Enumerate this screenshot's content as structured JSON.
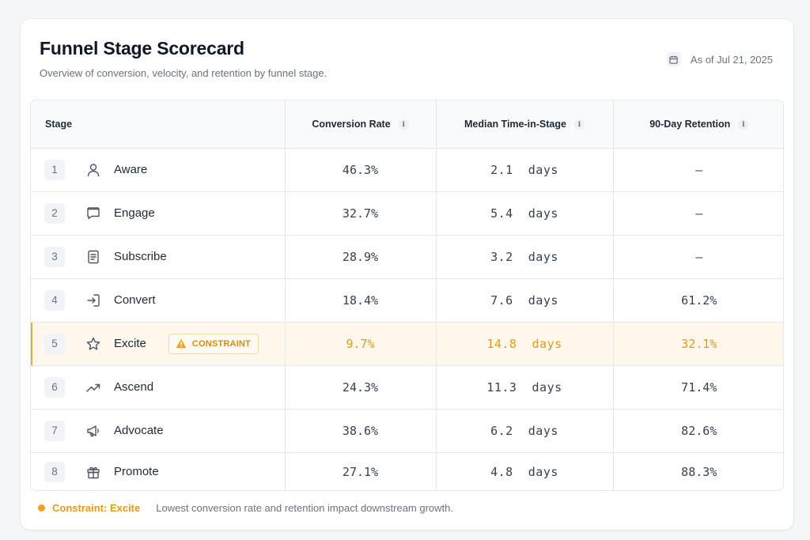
{
  "header": {
    "title": "Funnel Stage Scorecard",
    "subtitle": "Overview of conversion, velocity, and retention by funnel stage.",
    "as_of": "As of Jul 21, 2025"
  },
  "columns": {
    "stage": "Stage",
    "conversion": "Conversion Rate",
    "time": "Median Time-in-Stage",
    "retention": "90-Day Retention",
    "info_glyph": "i"
  },
  "rows": [
    {
      "num": "1",
      "icon": "user-icon",
      "name": "Aware",
      "conversion": "46.3%",
      "time": "2.1",
      "unit": "days",
      "retention": "–"
    },
    {
      "num": "2",
      "icon": "chat-bubble-icon",
      "name": "Engage",
      "conversion": "32.7%",
      "time": "5.4",
      "unit": "days",
      "retention": "–"
    },
    {
      "num": "3",
      "icon": "document-icon",
      "name": "Subscribe",
      "conversion": "28.9%",
      "time": "3.2",
      "unit": "days",
      "retention": "–"
    },
    {
      "num": "4",
      "icon": "sign-in-icon",
      "name": "Convert",
      "conversion": "18.4%",
      "time": "7.6",
      "unit": "days",
      "retention": "61.2%"
    },
    {
      "num": "5",
      "icon": "star-icon",
      "name": "Excite",
      "conversion": "9.7%",
      "time": "14.8",
      "unit": "days",
      "retention": "32.1%",
      "badge": "CONSTRAINT",
      "highlight": true
    },
    {
      "num": "6",
      "icon": "trending-up-icon",
      "name": "Ascend",
      "conversion": "24.3%",
      "time": "11.3",
      "unit": "days",
      "retention": "71.4%"
    },
    {
      "num": "7",
      "icon": "megaphone-icon",
      "name": "Advocate",
      "conversion": "38.6%",
      "time": "6.2",
      "unit": "days",
      "retention": "82.6%"
    },
    {
      "num": "8",
      "icon": "gift-icon",
      "name": "Promote",
      "conversion": "27.1%",
      "time": "4.8",
      "unit": "days",
      "retention": "88.3%"
    }
  ],
  "footer": {
    "label": "Constraint: Excite",
    "description": "Lowest conversion rate and retention impact downstream growth."
  },
  "colors": {
    "accent": "#e39a1e",
    "highlight_bg": "#fef8ec",
    "text": "#1f2937",
    "muted": "#6b7280",
    "border": "#e5e7eb"
  }
}
